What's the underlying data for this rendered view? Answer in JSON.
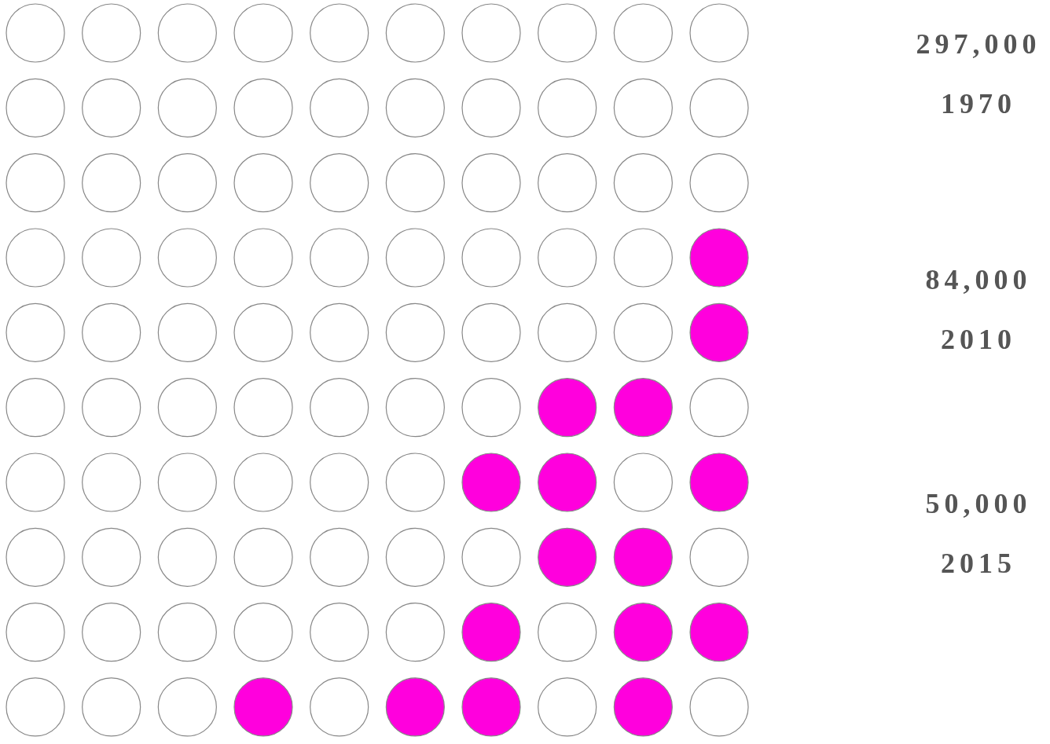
{
  "chart_data": {
    "type": "other",
    "categories": [
      "1970",
      "2010",
      "2015"
    ],
    "values": [
      297000,
      84000,
      50000
    ],
    "value_labels": [
      "297,000",
      "84,000",
      "50,000"
    ]
  }
}
